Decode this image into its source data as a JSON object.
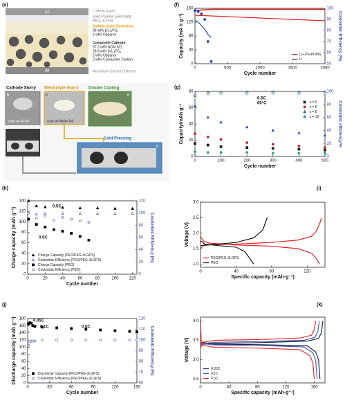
{
  "panel_a": {
    "label": "(a)",
    "anode": "Li",
    "collector": "Al",
    "texts": [
      "Li Metal Anode",
      "Solid Polymer Electrolyte:",
      "PEO₂₀LiTFSI",
      "Sulfidic Solid Electrolyte:",
      "98 wt% β-Li₃PS₄",
      "2 wt% Oppanol",
      "Composite Cathode:",
      "67.2 wt% NCM 622",
      "28.8 wt% β-Li₃PS₄",
      "2 wt% Oppanol",
      "2 wt% Conductive Carbon",
      "Aluminium Current Collector"
    ]
  },
  "panel_b": {
    "steps": [
      "Cathode Slurry",
      "Electrolyte Slurry",
      "Double Coating",
      "Cold Pressing"
    ],
    "letters": [
      "b",
      "c",
      "d",
      "e"
    ],
    "captions": [
      "coat on Al-foil",
      "coat on Mylar-foil"
    ]
  },
  "chart_data": [
    {
      "type": "line",
      "label": "(f)",
      "xlabel": "Cycle number",
      "ylabel": "Capacity (mA h g⁻¹)",
      "y2label": "Coulombic Efficiency (%)",
      "xlim": [
        0,
        2000
      ],
      "xticks": [
        0,
        500,
        1000,
        1500,
        2000
      ],
      "ylim": [
        0,
        160
      ],
      "yticks": [
        0,
        40,
        80,
        120,
        160
      ],
      "y2lim": [
        50,
        100
      ],
      "y2ticks": [
        50,
        60,
        70,
        80,
        90,
        100
      ],
      "legend": "lower right",
      "annotations": [],
      "series": [
        {
          "name": "Li-LPS-PDMS",
          "color": "#d62728",
          "style": "line",
          "x": [
            0,
            250,
            500,
            750,
            1000,
            1250,
            1500,
            1750,
            2000
          ],
          "values": [
            140,
            138,
            136,
            134,
            132,
            130,
            128,
            126,
            124
          ]
        },
        {
          "color": "#d62728",
          "style": "line",
          "axis": "y2",
          "x": [
            0,
            250,
            500,
            750,
            1000,
            1250,
            1500,
            1750,
            2000
          ],
          "values": [
            98,
            99,
            99,
            99,
            99,
            99,
            99,
            99,
            99
          ]
        },
        {
          "name": "Li",
          "color": "#1f3fbf",
          "style": "line",
          "x": [
            0,
            50,
            100,
            150,
            200,
            250
          ],
          "values": [
            125,
            120,
            110,
            100,
            85,
            75
          ]
        },
        {
          "color": "#1f3fbf",
          "style": "marker",
          "marker": "circle",
          "filled": true,
          "axis": "y2",
          "x": [
            0,
            50,
            100,
            150,
            200,
            250
          ],
          "values": [
            98,
            97,
            95,
            90,
            70,
            52
          ]
        }
      ]
    },
    {
      "type": "line",
      "label": "(g)",
      "xlabel": "Cycle number",
      "ylabel": "Capacity/mAh g⁻¹",
      "y2label": "Coulombic efficiency/%",
      "xlim": [
        0,
        500
      ],
      "xticks": [
        0,
        100,
        200,
        300,
        400,
        500
      ],
      "ylim": [
        0,
        80
      ],
      "yticks": [
        0,
        20,
        40,
        60,
        80
      ],
      "y2lim": [
        0,
        100
      ],
      "y2ticks": [
        0,
        20,
        40,
        60,
        80,
        100
      ],
      "legend": "upper right",
      "annotations": [
        "0.5C",
        "60°C"
      ],
      "series": [
        {
          "name": "x = 0",
          "color": "#222222",
          "style": "marker",
          "marker": "square",
          "filled": true,
          "x": [
            0,
            50,
            100,
            200,
            300,
            400,
            500
          ],
          "values": [
            16,
            14,
            12,
            11,
            10,
            9,
            8
          ]
        },
        {
          "name": "x = 5",
          "color": "#c0282d",
          "style": "marker",
          "marker": "circle",
          "filled": true,
          "x": [
            0,
            50,
            100,
            200,
            300,
            400,
            500
          ],
          "values": [
            28,
            24,
            21,
            17,
            15,
            13,
            11
          ]
        },
        {
          "name": "x = 8",
          "color": "#2b4fc4",
          "style": "marker",
          "marker": "triangle",
          "filled": true,
          "x": [
            0,
            50,
            100,
            200,
            300,
            400,
            500
          ],
          "values": [
            62,
            48,
            42,
            36,
            32,
            29,
            26
          ]
        },
        {
          "name": "x = 10",
          "color": "#2a9d8f",
          "style": "marker",
          "marker": "circle",
          "filled": true,
          "x": [
            0,
            50,
            100,
            200,
            300,
            400,
            500
          ],
          "values": [
            6,
            5,
            5,
            5,
            4,
            4,
            4
          ]
        },
        {
          "color": "#222222",
          "style": "marker",
          "marker": "square",
          "filled": false,
          "axis": "y2",
          "x": [
            0,
            50,
            100,
            200,
            300,
            400,
            500
          ],
          "values": [
            93,
            97,
            98,
            98,
            98,
            98,
            98
          ]
        },
        {
          "color": "#c0282d",
          "style": "marker",
          "marker": "circle",
          "filled": false,
          "axis": "y2",
          "x": [
            0,
            50,
            100,
            200,
            300,
            400,
            500
          ],
          "values": [
            94,
            98,
            99,
            99,
            99,
            99,
            99
          ]
        },
        {
          "color": "#2b4fc4",
          "style": "marker",
          "marker": "triangle",
          "filled": false,
          "axis": "y2",
          "x": [
            0,
            50,
            100,
            200,
            300,
            400,
            500
          ],
          "values": [
            95,
            98,
            98,
            99,
            99,
            99,
            99
          ]
        },
        {
          "color": "#2a9d8f",
          "style": "marker",
          "marker": "circle",
          "filled": false,
          "axis": "y2",
          "x": [
            0,
            50,
            100,
            200,
            300,
            400,
            500
          ],
          "values": [
            90,
            96,
            97,
            97,
            97,
            97,
            97
          ]
        }
      ]
    },
    {
      "type": "line",
      "label": "(h)",
      "xlabel": "Cycle number",
      "ylabel": "Charge capacity (mAh g⁻¹)",
      "y2label": "Coulombic Efficiency (%)",
      "xlim": [
        0,
        125
      ],
      "xticks": [
        0,
        20,
        40,
        60,
        80,
        100,
        120
      ],
      "ylim": [
        0,
        140
      ],
      "yticks": [
        0,
        20,
        40,
        60,
        80,
        100,
        120,
        140
      ],
      "y2lim": [
        0,
        120
      ],
      "y2ticks": [
        0,
        20,
        40,
        60,
        80,
        100,
        120
      ],
      "legend": "lower left",
      "annotations": [
        "0.5C",
        "0.5C"
      ],
      "series": [
        {
          "name": "Charge Capacity (PEO/PEG-3LGPS)",
          "color": "#000000",
          "style": "marker",
          "marker": "triangle",
          "filled": true,
          "x": [
            1,
            10,
            20,
            40,
            60,
            80,
            100,
            120
          ],
          "values": [
            140,
            130,
            128,
            127,
            126,
            126,
            125,
            125
          ]
        },
        {
          "name": "Coulombic Efficiency (PEO/PEG-3LGPS)",
          "color": "#3b4fa8",
          "style": "marker",
          "marker": "triangle",
          "filled": false,
          "axis": "y2",
          "x": [
            1,
            10,
            20,
            40,
            60,
            80,
            100,
            120
          ],
          "values": [
            90,
            98,
            99,
            99,
            99,
            99,
            99,
            99
          ]
        },
        {
          "name": "Charge Capacity (PEO)",
          "color": "#000000",
          "style": "marker",
          "marker": "square",
          "filled": true,
          "x": [
            1,
            10,
            20,
            30,
            40,
            50,
            60,
            70
          ],
          "values": [
            105,
            95,
            90,
            85,
            82,
            78,
            72,
            65
          ]
        },
        {
          "name": "Coulombic Efficiency (PEO)",
          "color": "#3b4fa8",
          "style": "marker",
          "marker": "circle",
          "filled": false,
          "axis": "y2",
          "x": [
            1,
            10,
            20,
            30,
            40,
            50,
            60,
            70
          ],
          "values": [
            100,
            92,
            95,
            88,
            93,
            90,
            87,
            85
          ]
        }
      ]
    },
    {
      "type": "line",
      "label": "(i)",
      "xlabel": "Specific capacity (mAh·g⁻¹)",
      "ylabel": "Voltage (V)",
      "xlim": [
        0,
        140
      ],
      "xticks": [
        0,
        40,
        80,
        120
      ],
      "ylim": [
        0.9,
        3.0
      ],
      "yticks": [
        {
          "value": 1,
          "label": "1.0"
        },
        1.5,
        {
          "value": 2,
          "label": "2.0"
        },
        2.5,
        {
          "value": 3,
          "label": "3.0"
        }
      ],
      "legend": "lower left",
      "annotations": [],
      "series": [
        {
          "name": "PEO/PEG-3LGPS",
          "color": "#e02020",
          "style": "line",
          "x": [
            0,
            3,
            10,
            40,
            80,
            110,
            125,
            130,
            134,
            136,
            null,
            0,
            3,
            10,
            40,
            80,
            110,
            125,
            130,
            134
          ],
          "values": [
            1.5,
            1.6,
            1.62,
            1.65,
            1.7,
            1.78,
            1.9,
            2.05,
            2.3,
            2.5,
            null,
            1.9,
            1.75,
            1.68,
            1.62,
            1.58,
            1.5,
            1.35,
            1.2,
            1.0
          ]
        },
        {
          "name": "PEO",
          "color": "#111111",
          "style": "line",
          "x": [
            0,
            5,
            20,
            40,
            60,
            70,
            75,
            null,
            0,
            5,
            20,
            40,
            50,
            55,
            60
          ],
          "values": [
            1.6,
            1.62,
            1.65,
            1.7,
            1.85,
            2.1,
            2.5,
            null,
            1.75,
            1.65,
            1.6,
            1.55,
            1.4,
            1.2,
            1.0
          ]
        }
      ]
    },
    {
      "type": "line",
      "label": "(j)",
      "xlabel": "Cycle number",
      "ylabel": "Discharge capacity (mAh g⁻¹)",
      "y2label": "Coulombic Efficiency (%)",
      "xlim": [
        0,
        150
      ],
      "xticks": [
        0,
        30,
        60,
        90,
        120,
        150
      ],
      "ylim": [
        0,
        180
      ],
      "yticks": [
        0,
        20,
        40,
        60,
        80,
        100,
        120,
        140,
        160,
        180
      ],
      "y2lim": [
        60,
        120
      ],
      "y2ticks": [
        60,
        70,
        80,
        90,
        100,
        110,
        120
      ],
      "legend": "lower left",
      "annotations": [
        "0.05C",
        "0.1C",
        "0.5C"
      ],
      "series": [
        {
          "name": "Discharge Capacity (PEO/PEG-3LGPS)",
          "color": "#000000",
          "style": "marker",
          "marker": "square",
          "filled": true,
          "x": [
            1,
            3,
            5,
            7,
            10,
            20,
            40,
            60,
            80,
            100,
            120,
            140,
            150
          ],
          "values": [
            165,
            168,
            167,
            160,
            158,
            156,
            154,
            152,
            150,
            148,
            146,
            144,
            143
          ]
        },
        {
          "name": "Coulombic Efficiency (PEO/PEG-3LGPS)",
          "color": "#3b4fa8",
          "style": "marker",
          "marker": "circle",
          "filled": false,
          "axis": "y2",
          "x": [
            1,
            3,
            5,
            7,
            10,
            20,
            40,
            60,
            80,
            100,
            120,
            140,
            150
          ],
          "values": [
            95,
            98,
            99,
            99,
            99,
            100,
            100,
            100,
            100,
            100,
            100,
            100,
            100
          ]
        }
      ]
    },
    {
      "type": "line",
      "label": "(k)",
      "xlabel": "Specific capacity (mAh·g⁻¹)",
      "ylabel": "Voltage (V)",
      "xlim": [
        0,
        175
      ],
      "xticks": [
        0,
        40,
        80,
        120,
        160
      ],
      "ylim": [
        2.4,
        4.1
      ],
      "yticks": [
        2.5,
        {
          "value": 3,
          "label": "3.0"
        },
        3.5,
        {
          "value": 4,
          "label": "4.0"
        }
      ],
      "legend": "lower left",
      "annotations": [],
      "series": [
        {
          "name": "0.05C",
          "color": "#1b2550",
          "style": "line",
          "x": [
            0,
            2,
            20,
            80,
            150,
            166,
            170,
            172,
            null,
            0,
            1,
            20,
            80,
            150,
            162,
            166,
            168
          ],
          "values": [
            3.3,
            3.4,
            3.42,
            3.44,
            3.48,
            3.55,
            3.7,
            4.0,
            null,
            4.0,
            3.45,
            3.4,
            3.39,
            3.36,
            3.2,
            3.0,
            2.5
          ]
        },
        {
          "name": "0.1C",
          "color": "#4a5fa8",
          "style": "line",
          "x": [
            0,
            2,
            20,
            80,
            145,
            161,
            165,
            167,
            null,
            0,
            1,
            20,
            80,
            145,
            158,
            162,
            164
          ],
          "values": [
            3.3,
            3.42,
            3.45,
            3.47,
            3.5,
            3.58,
            3.72,
            4.0,
            null,
            4.0,
            3.42,
            3.38,
            3.37,
            3.33,
            3.18,
            2.98,
            2.5
          ]
        },
        {
          "name": "0.5C",
          "color": "#e03030",
          "style": "line",
          "x": [
            0,
            2,
            20,
            80,
            140,
            156,
            160,
            162,
            null,
            0,
            1,
            20,
            80,
            140,
            154,
            158,
            160
          ],
          "values": [
            3.3,
            3.45,
            3.5,
            3.52,
            3.56,
            3.63,
            3.78,
            4.0,
            null,
            4.0,
            3.38,
            3.32,
            3.3,
            3.26,
            3.1,
            2.92,
            2.5
          ]
        }
      ]
    }
  ]
}
